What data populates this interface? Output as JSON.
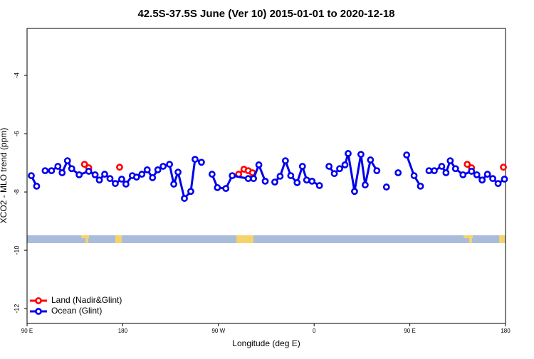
{
  "chart_data": {
    "type": "line",
    "title": "42.5S-37.5S June (Ver 10)   2015-01-01 to 2020-12-18",
    "x_label": "Longitude (deg E)",
    "y_label": "XCO2 - MLO trend (ppm)",
    "xlim": [
      90,
      540
    ],
    "xticks": [
      {
        "value": 90,
        "label": "90 E"
      },
      {
        "value": 180,
        "label": "180"
      },
      {
        "value": 270,
        "label": "90 W"
      },
      {
        "value": 360,
        "label": "0"
      },
      {
        "value": 450,
        "label": "90 E"
      },
      {
        "value": 540,
        "label": "180"
      }
    ],
    "ylim": [
      -12.51,
      -2.39
    ],
    "yticks": [
      -12,
      -10,
      -8,
      -6,
      -4
    ],
    "legend": "lower left",
    "series": [
      {
        "name": "Land (Nadir&Glint)",
        "color": "#ff0000",
        "x": [
          144,
          148,
          null,
          177,
          null,
          289,
          294,
          298,
          302,
          null,
          504,
          508,
          null,
          538
        ],
        "values": [
          -7.05,
          -7.17,
          null,
          -7.15,
          null,
          -7.39,
          -7.22,
          -7.27,
          -7.34,
          null,
          -7.05,
          -7.17,
          null,
          -7.15
        ]
      },
      {
        "name": "Ocean (Glint)",
        "color": "#0000ee",
        "x": [
          94,
          99,
          null,
          107,
          113,
          119,
          123,
          128,
          132,
          139,
          148,
          154,
          158,
          163,
          168,
          173,
          179,
          183,
          189,
          193,
          198,
          203,
          208,
          213,
          218,
          224,
          228,
          232,
          238,
          244,
          248,
          254,
          null,
          264,
          269,
          277,
          283,
          298,
          303,
          308,
          314,
          null,
          323,
          328,
          333,
          338,
          344,
          349,
          353,
          358,
          365,
          null,
          374,
          379,
          384,
          389,
          392,
          398,
          404,
          408,
          413,
          419,
          null,
          428,
          null,
          439,
          null,
          447,
          454,
          460,
          null,
          468,
          473,
          480,
          484,
          488,
          493,
          500,
          508,
          513,
          518,
          523,
          528,
          533,
          539
        ],
        "values": [
          -7.44,
          -7.8,
          null,
          -7.27,
          -7.27,
          -7.12,
          -7.34,
          -6.93,
          -7.2,
          -7.41,
          -7.29,
          -7.41,
          -7.59,
          -7.39,
          -7.54,
          -7.71,
          -7.56,
          -7.73,
          -7.44,
          -7.49,
          -7.39,
          -7.24,
          -7.51,
          -7.24,
          -7.12,
          -7.05,
          -7.73,
          -7.32,
          -8.22,
          -7.98,
          -6.88,
          -6.98,
          null,
          -7.39,
          -7.85,
          -7.88,
          -7.44,
          -7.54,
          -7.54,
          -7.07,
          -7.63,
          null,
          -7.66,
          -7.46,
          -6.93,
          -7.44,
          -7.68,
          -7.12,
          -7.59,
          -7.63,
          -7.78,
          null,
          -7.12,
          -7.37,
          -7.2,
          -7.07,
          -6.68,
          -7.98,
          -6.71,
          -7.76,
          -6.9,
          -7.27,
          null,
          -7.83,
          null,
          -7.34,
          null,
          -6.73,
          -7.44,
          -7.8,
          null,
          -7.27,
          -7.27,
          -7.12,
          -7.34,
          -6.93,
          -7.2,
          -7.41,
          -7.29,
          -7.41,
          -7.59,
          -7.39,
          -7.54,
          -7.71,
          -7.56
        ]
      }
    ]
  }
}
